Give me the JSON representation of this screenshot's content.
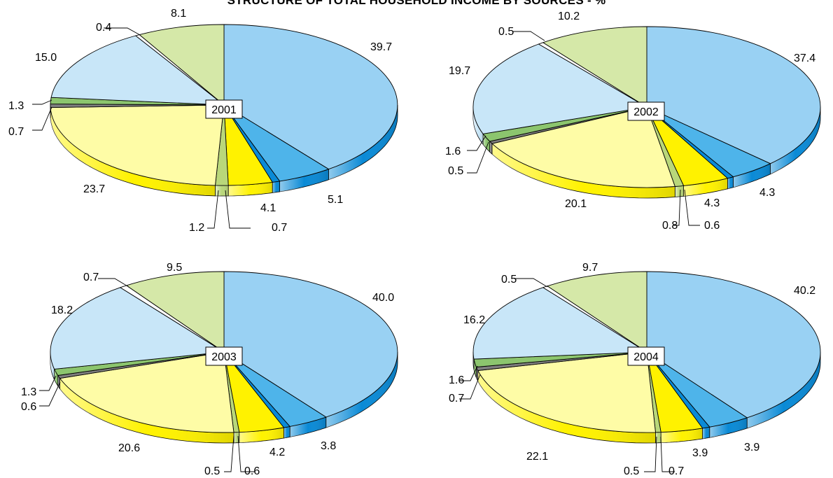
{
  "title": "STRUCTURE OF TOTAL HOUSEHOLD INCOME BY SOURCES - %",
  "colors": [
    "#99d1f3",
    "#4eb4ea",
    "#0a8ad6",
    "#fff200",
    "#b9d77a",
    "#fefca6",
    "#7f7f7f",
    "#8cc56e",
    "#c8e6f8",
    "#ffffff",
    "#d5e8a8"
  ],
  "chart_data": [
    {
      "type": "pie",
      "title": "2001",
      "values": [
        39.7,
        5.1,
        0.7,
        4.1,
        1.2,
        23.7,
        0.7,
        1.3,
        15.0,
        0.4,
        8.1
      ],
      "labels": [
        "39.7",
        "5.1",
        "0.7",
        "4.1",
        "1.2",
        "23.7",
        "0.7",
        "1.3",
        "15.0",
        "0.4",
        "8.1"
      ]
    },
    {
      "type": "pie",
      "title": "2002",
      "values": [
        37.4,
        4.3,
        0.6,
        4.3,
        0.8,
        20.1,
        0.5,
        1.6,
        19.7,
        0.5,
        10.2
      ],
      "labels": [
        "37.4",
        "4.3",
        "0.6",
        "4.3",
        "0.8",
        "20.1",
        "0.5",
        "1.6",
        "19.7",
        "0.5",
        "10.2"
      ]
    },
    {
      "type": "pie",
      "title": "2003",
      "values": [
        40.0,
        3.8,
        0.6,
        4.2,
        0.5,
        20.6,
        0.6,
        1.3,
        18.2,
        0.7,
        9.5
      ],
      "labels": [
        "40.0",
        "3.8",
        "0.6",
        "4.2",
        "0.5",
        "20.6",
        "0.6",
        "1.3",
        "18.2",
        "0.7",
        "9.5"
      ]
    },
    {
      "type": "pie",
      "title": "2004",
      "values": [
        40.2,
        3.9,
        0.7,
        3.9,
        0.5,
        22.1,
        0.7,
        1.6,
        16.2,
        0.5,
        9.7
      ],
      "labels": [
        "40.2",
        "3.9",
        "0.7",
        "3.9",
        "0.5",
        "22.1",
        "0.7",
        "1.6",
        "16.2",
        "0.5",
        "9.7"
      ]
    }
  ]
}
